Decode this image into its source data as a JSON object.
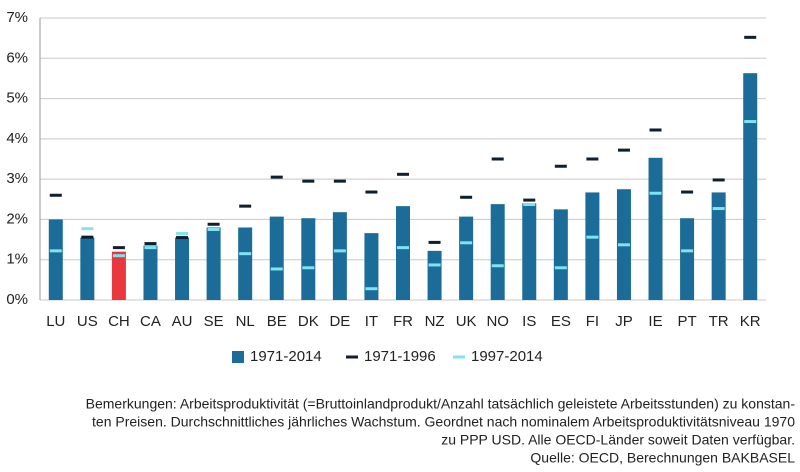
{
  "chart_data": {
    "type": "bar",
    "categories": [
      "LU",
      "US",
      "CH",
      "CA",
      "AU",
      "SE",
      "NL",
      "BE",
      "DK",
      "DE",
      "IT",
      "FR",
      "NZ",
      "UK",
      "NO",
      "IS",
      "ES",
      "FI",
      "JP",
      "IE",
      "PT",
      "TR",
      "KR"
    ],
    "series": [
      {
        "name": "1971-2014",
        "color": "#1b6c98",
        "mark": "bar",
        "values": [
          2.0,
          1.55,
          1.2,
          1.35,
          1.55,
          1.8,
          1.8,
          2.07,
          2.03,
          2.18,
          1.66,
          2.33,
          1.22,
          2.07,
          2.38,
          2.4,
          2.25,
          2.67,
          2.75,
          3.53,
          2.03,
          2.67,
          5.63
        ],
        "bar_colors": [
          "#1b6c98",
          "#1b6c98",
          "#e8383d",
          "#1b6c98",
          "#1b6c98",
          "#1b6c98",
          "#1b6c98",
          "#1b6c98",
          "#1b6c98",
          "#1b6c98",
          "#1b6c98",
          "#1b6c98",
          "#1b6c98",
          "#1b6c98",
          "#1b6c98",
          "#1b6c98",
          "#1b6c98",
          "#1b6c98",
          "#1b6c98",
          "#1b6c98",
          "#1b6c98",
          "#1b6c98",
          "#1b6c98"
        ]
      },
      {
        "name": "1971-1996",
        "color": "#0f1f2e",
        "mark": "dash",
        "values": [
          2.6,
          1.56,
          1.3,
          1.4,
          1.55,
          1.88,
          2.33,
          3.05,
          2.95,
          2.95,
          2.68,
          3.12,
          1.43,
          2.55,
          3.5,
          2.48,
          3.32,
          3.5,
          3.72,
          4.22,
          2.68,
          2.98,
          6.52
        ]
      },
      {
        "name": "1997-2014",
        "color": "#7fe3f0",
        "mark": "dash",
        "values": [
          1.22,
          1.77,
          1.1,
          1.3,
          1.65,
          1.75,
          1.15,
          0.77,
          0.8,
          1.22,
          0.28,
          1.3,
          0.87,
          1.42,
          0.85,
          2.37,
          0.8,
          1.56,
          1.37,
          2.65,
          1.22,
          2.27,
          4.43
        ]
      }
    ],
    "ylim": [
      0,
      7
    ],
    "yticks": [
      {
        "value": 0,
        "label": "0%"
      },
      {
        "value": 1,
        "label": "1%"
      },
      {
        "value": 2,
        "label": "2%"
      },
      {
        "value": 3,
        "label": "3%"
      },
      {
        "value": 4,
        "label": "4%"
      },
      {
        "value": 5,
        "label": "5%"
      },
      {
        "value": 6,
        "label": "6%"
      },
      {
        "value": 7,
        "label": "7%"
      }
    ],
    "grid": true,
    "legend": "bottom",
    "notes": [
      "Bemerkungen: Arbeitsproduktivität (=Bruttoinlandprodukt/Anzahl tatsächlich geleistete Arbeitsstunden) zu konstan-",
      "ten Preisen. Durchschnittliches jährliches Wachstum.  Geordnet nach nominalem Arbeitsproduktivitätsniveau 1970",
      "zu PPP USD. Alle OECD-Länder soweit Daten verfügbar.",
      "Quelle: OECD, Berechnungen BAKBASEL"
    ]
  }
}
